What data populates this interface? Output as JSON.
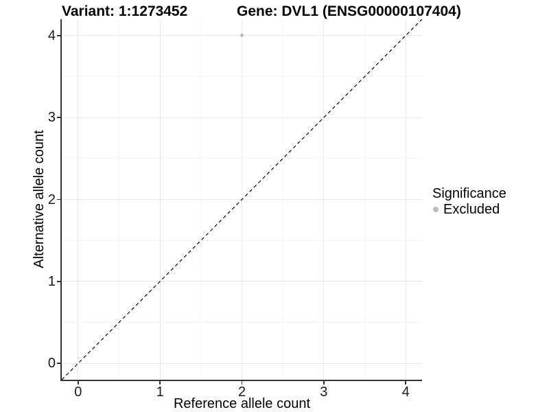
{
  "titles": {
    "variant": "Variant: 1:1273452",
    "gene": "Gene: DVL1 (ENSG00000107404)"
  },
  "legend": {
    "title": "Significance",
    "items": [
      {
        "label": "Excluded",
        "color": "#bdbdbd"
      }
    ]
  },
  "chart_data": {
    "type": "scatter",
    "title": "Variant: 1:1273452   Gene: DVL1 (ENSG00000107404)",
    "xlabel": "Reference allele count",
    "ylabel": "Alternative allele count",
    "xlim": [
      -0.2,
      4.2
    ],
    "ylim": [
      -0.2,
      4.2
    ],
    "x_ticks": [
      0,
      1,
      2,
      3,
      4
    ],
    "y_ticks": [
      0,
      1,
      2,
      3,
      4
    ],
    "x_minor_ticks": [
      0.5,
      1.5,
      2.5,
      3.5
    ],
    "y_minor_ticks": [
      0.5,
      1.5,
      2.5,
      3.5
    ],
    "grid": true,
    "legend_position": "right",
    "series": [
      {
        "name": "Excluded",
        "color": "#bdbdbd"
      }
    ],
    "points": [
      {
        "x": 2,
        "y": 4,
        "series": "Excluded"
      }
    ],
    "reference_line": {
      "type": "identity y=x",
      "style": "dashed",
      "color": "#000000"
    }
  },
  "colors": {
    "axis": "#333333",
    "grid_major": "#e9e9e9",
    "grid_minor": "#f5f5f5",
    "background": "#ffffff"
  }
}
